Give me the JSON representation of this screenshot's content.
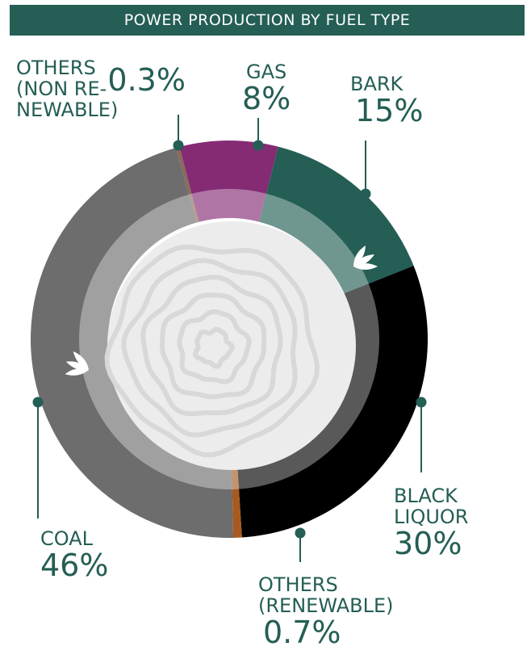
{
  "chart_data": {
    "type": "pie",
    "title": "POWER PRODUCTION BY FUEL TYPE",
    "slices": [
      {
        "label": "GAS",
        "value": 8,
        "display": "8%",
        "color": "#852b73"
      },
      {
        "label": "BARK",
        "value": 15,
        "display": "15%",
        "color": "#245e55"
      },
      {
        "label": "BLACK LIQUOR",
        "value": 30,
        "display": "30%",
        "color": "#000000"
      },
      {
        "label": "OTHERS (RENEWABLE)",
        "value": 0.7,
        "display": "0.7%",
        "color": "#a85a1e"
      },
      {
        "label": "COAL",
        "value": 46,
        "display": "46%",
        "color": "#6d6d6d"
      },
      {
        "label": "OTHERS (NON RE-NEWABLE)",
        "value": 0.3,
        "display": "0.3%",
        "color": "#8a6a5a"
      }
    ]
  },
  "labels": {
    "gas": {
      "lines": [
        "GAS"
      ],
      "pct": "8%"
    },
    "bark": {
      "lines": [
        "BARK"
      ],
      "pct": "15%"
    },
    "black_liquor": {
      "lines": [
        "BLACK",
        "LIQUOR"
      ],
      "pct": "30%"
    },
    "others_renewable": {
      "lines": [
        "OTHERS",
        "(RENEWABLE)"
      ],
      "pct": "0.7%"
    },
    "coal": {
      "lines": [
        "COAL"
      ],
      "pct": "46%"
    },
    "others_nonrenewable": {
      "lines": [
        "OTHERS",
        "(NON RE-",
        "NEWABLE)"
      ],
      "pct": "0.3%"
    }
  },
  "colors": {
    "accent": "#245e55",
    "leader": "#245e55",
    "core": "#ececec",
    "rings": "#d8d8d8"
  }
}
